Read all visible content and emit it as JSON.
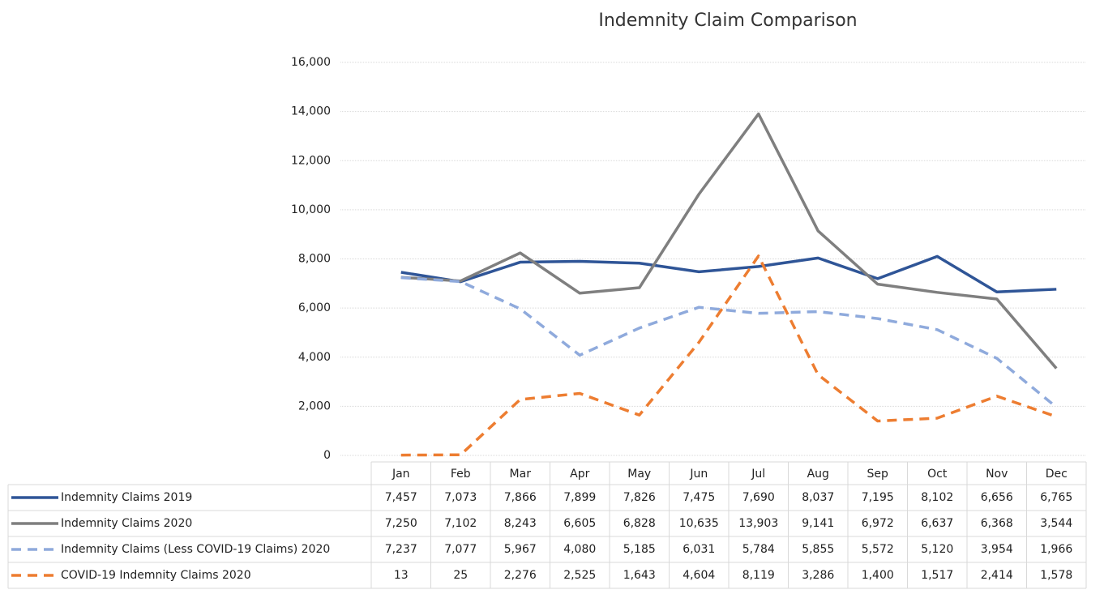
{
  "chart_data": {
    "type": "line",
    "title": "Indemnity Claim Comparison",
    "categories": [
      "Jan",
      "Feb",
      "Mar",
      "Apr",
      "May",
      "Jun",
      "Jul",
      "Aug",
      "Sep",
      "Oct",
      "Nov",
      "Dec"
    ],
    "ylim": [
      0,
      16000
    ],
    "yticks": [
      0,
      {
        "value": 2000,
        "label": "2,000"
      },
      {
        "value": 4000,
        "label": "4,000"
      },
      {
        "value": 6000,
        "label": "6,000"
      },
      {
        "value": 8000,
        "label": "8,000"
      },
      {
        "value": 10000,
        "label": "10,000"
      },
      {
        "value": 12000,
        "label": "12,000"
      },
      {
        "value": 14000,
        "label": "14,000"
      },
      {
        "value": 16000,
        "label": "16,000"
      }
    ],
    "grid": true,
    "series": [
      {
        "name": "Indemnity Claims 2019",
        "color": "#2f5597",
        "dashed": false,
        "values": [
          7457,
          7073,
          7866,
          7899,
          7826,
          7475,
          7690,
          8037,
          7195,
          8102,
          6656,
          6765
        ],
        "value_labels": [
          "7,457",
          "7,073",
          "7,866",
          "7,899",
          "7,826",
          "7,475",
          "7,690",
          "8,037",
          "7,195",
          "8,102",
          "6,656",
          "6,765"
        ]
      },
      {
        "name": "Indemnity Claims 2020",
        "color": "#7f7f7f",
        "dashed": false,
        "values": [
          7250,
          7102,
          8243,
          6605,
          6828,
          10635,
          13903,
          9141,
          6972,
          6637,
          6368,
          3544
        ],
        "value_labels": [
          "7,250",
          "7,102",
          "8,243",
          "6,605",
          "6,828",
          "10,635",
          "13,903",
          "9,141",
          "6,972",
          "6,637",
          "6,368",
          "3,544"
        ]
      },
      {
        "name": "Indemnity Claims (Less COVID-19 Claims) 2020",
        "color": "#8faadc",
        "dashed": true,
        "values": [
          7237,
          7077,
          5967,
          4080,
          5185,
          6031,
          5784,
          5855,
          5572,
          5120,
          3954,
          1966
        ],
        "value_labels": [
          "7,237",
          "7,077",
          "5,967",
          "4,080",
          "5,185",
          "6,031",
          "5,784",
          "5,855",
          "5,572",
          "5,120",
          "3,954",
          "1,966"
        ]
      },
      {
        "name": "COVID-19 Indemnity Claims 2020",
        "color": "#ed7d31",
        "dashed": true,
        "values": [
          13,
          25,
          2276,
          2525,
          1643,
          4604,
          8119,
          3286,
          1400,
          1517,
          2414,
          1578
        ],
        "value_labels": [
          "13",
          "25",
          "2,276",
          "2,525",
          "1,643",
          "4,604",
          "8,119",
          "3,286",
          "1,400",
          "1,517",
          "2,414",
          "1,578"
        ]
      }
    ]
  }
}
